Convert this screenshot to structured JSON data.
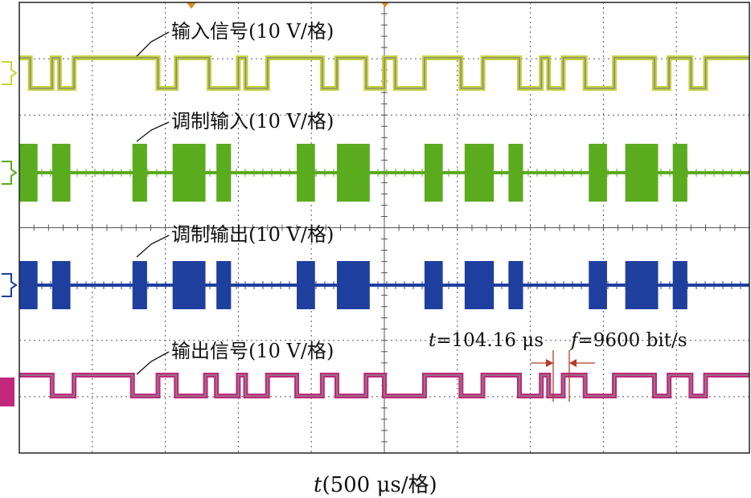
{
  "chart_data": {
    "type": "line",
    "title": "",
    "xlabel_prefix": "t",
    "xlabel_rest": "(500 μs/格)",
    "grid": true,
    "divisions": {
      "x": 10,
      "y": 8
    },
    "series": [
      {
        "name": "输入信号(10 V/格)",
        "kind": "digital",
        "color": "#c7d33a",
        "edge_color": "#888888",
        "transitions_div": [
          0.15,
          0.45,
          0.55,
          0.75,
          1.9,
          2.15,
          2.6,
          3.0,
          3.1,
          3.4,
          4.15,
          4.35,
          4.75,
          5.0,
          5.15,
          5.55,
          6.05,
          6.35,
          6.85,
          7.15,
          7.25,
          7.45,
          7.75,
          8.15,
          8.7,
          8.9,
          9.2,
          9.4
        ]
      },
      {
        "name": "调制输入(10 V/格)",
        "kind": "burst",
        "color": "#5bab1f",
        "bursts_div": [
          [
            0.0,
            0.25
          ],
          [
            0.45,
            0.7
          ],
          [
            1.55,
            1.75
          ],
          [
            2.1,
            2.55
          ],
          [
            2.7,
            2.9
          ],
          [
            3.8,
            4.05
          ],
          [
            4.35,
            4.8
          ],
          [
            5.55,
            5.8
          ],
          [
            6.1,
            6.5
          ],
          [
            6.7,
            6.9
          ],
          [
            7.8,
            8.05
          ],
          [
            8.3,
            8.75
          ],
          [
            8.95,
            9.15
          ]
        ]
      },
      {
        "name": "调制输出(10 V/格)",
        "kind": "burst",
        "color": "#1e3f9e",
        "bursts_div": [
          [
            0.0,
            0.25
          ],
          [
            0.45,
            0.7
          ],
          [
            1.55,
            1.75
          ],
          [
            2.1,
            2.55
          ],
          [
            2.7,
            2.9
          ],
          [
            3.8,
            4.05
          ],
          [
            4.35,
            4.8
          ],
          [
            5.55,
            5.8
          ],
          [
            6.1,
            6.5
          ],
          [
            6.7,
            6.9
          ],
          [
            7.8,
            8.05
          ],
          [
            8.3,
            8.75
          ],
          [
            8.95,
            9.15
          ]
        ]
      },
      {
        "name": "输出信号(10 V/格)",
        "kind": "digital",
        "color": "#c2277a",
        "edge_color": "#888888",
        "transitions_div": [
          0.45,
          0.75,
          1.55,
          1.9,
          2.15,
          2.55,
          2.7,
          3.0,
          3.1,
          3.4,
          3.8,
          4.15,
          4.35,
          4.75,
          5.0,
          5.55,
          6.05,
          6.35,
          6.85,
          7.15,
          7.25,
          7.45,
          7.75,
          8.15,
          8.7,
          8.9,
          9.2,
          9.4
        ]
      }
    ],
    "annotation": {
      "t_symbol": "t",
      "t_value": "=104.16 μs",
      "f_symbol": "f",
      "f_value": "=9600 bit/s",
      "arrow_color": "#b53a2a"
    },
    "colors": {
      "grid": "#555555",
      "frame": "#222222",
      "markers": "#e08a1e"
    }
  }
}
